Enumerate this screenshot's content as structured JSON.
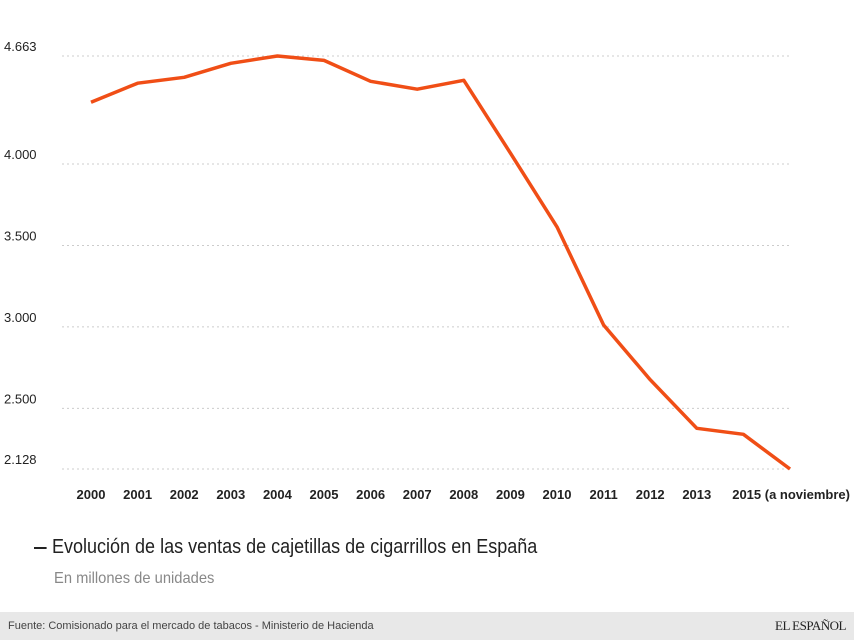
{
  "chart_data": {
    "type": "line",
    "x": [
      2000,
      2001,
      2002,
      2003,
      2004,
      2005,
      2006,
      2007,
      2008,
      2009,
      2010,
      2011,
      2012,
      2013,
      2014,
      2015
    ],
    "x_tick_labels": [
      "2000",
      "2001",
      "2002",
      "2003",
      "2004",
      "2005",
      "2006",
      "2007",
      "2008",
      "2009",
      "2010",
      "2011",
      "2012",
      "2013",
      "",
      "2015 (a noviembre)"
    ],
    "series": [
      {
        "name": "Evolución de las ventas de cajetillas de cigarrillos en España",
        "values": [
          4379,
          4496,
          4532,
          4618,
          4663,
          4636,
          4508,
          4459,
          4514,
          4067,
          3614,
          3012,
          2676,
          2378,
          2341,
          2128
        ],
        "color": "#f04e16"
      }
    ],
    "y_ticks": [
      4663,
      4000,
      3500,
      3000,
      2500,
      2128
    ],
    "y_tick_labels": [
      "4.663",
      "4.000",
      "3.500",
      "3.000",
      "2.500",
      "2.128"
    ],
    "ylim": [
      2128,
      4663
    ],
    "grid": "horizontal dotted",
    "legend": "bottom-left"
  },
  "legend": {
    "label": "Evolución de las ventas de cajetillas de cigarrillos en España"
  },
  "subtitle": "En millones de unidades",
  "footer": {
    "source": "Fuente: Comisionado para el mercado de tabacos - Ministerio de Hacienda",
    "brand": "EL ESPAÑOL"
  }
}
